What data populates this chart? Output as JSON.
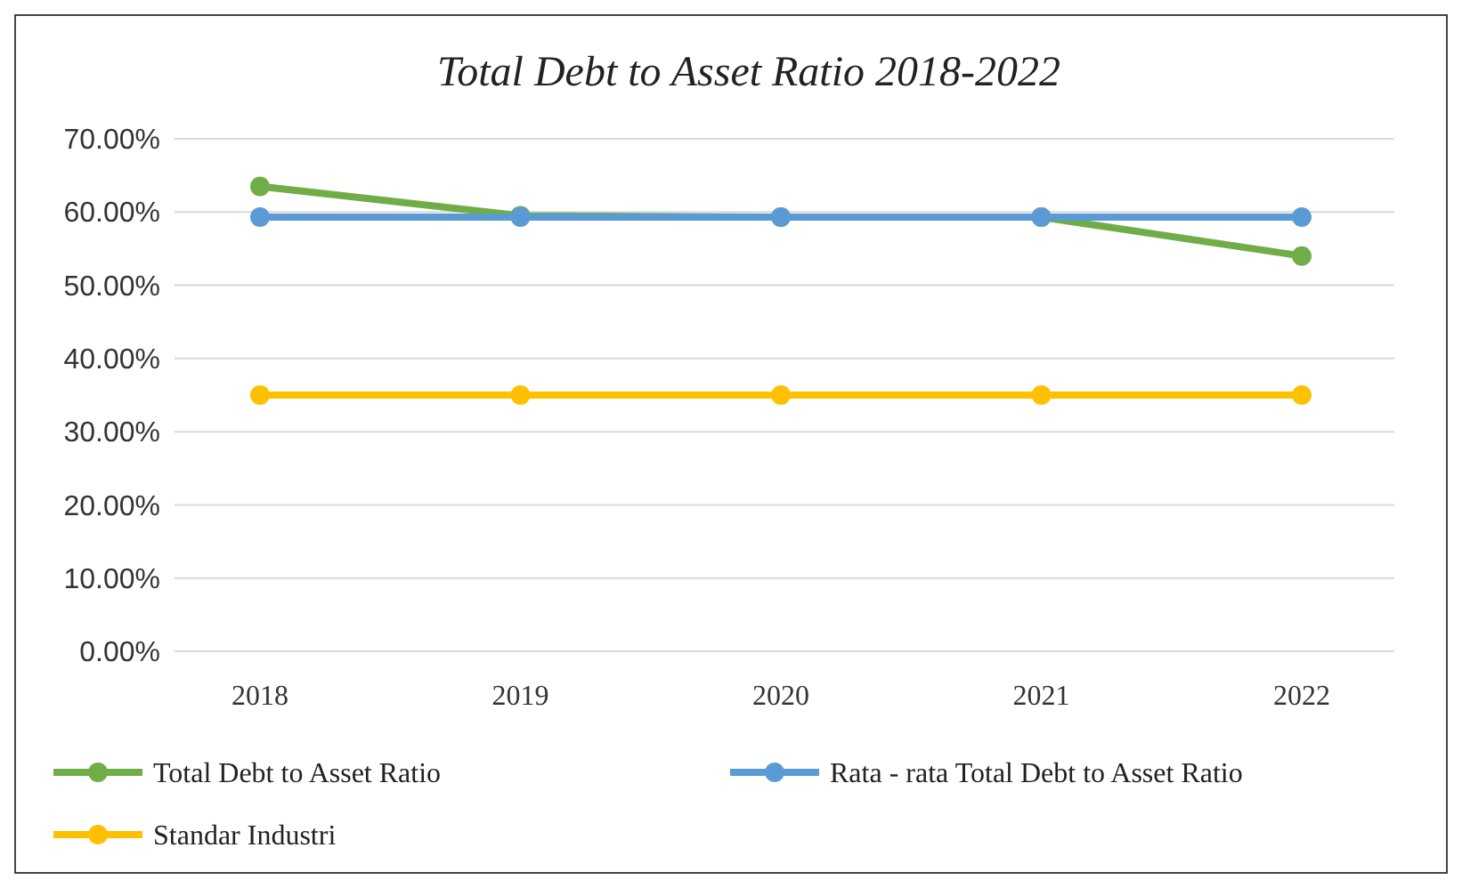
{
  "chart_data": {
    "type": "line",
    "title": "Total Debt to Asset Ratio 2018-2022",
    "categories": [
      "2018",
      "2019",
      "2020",
      "2021",
      "2022"
    ],
    "series": [
      {
        "name": "Total Debt to Asset Ratio",
        "color": "#70ad47",
        "values": [
          63.5,
          59.5,
          59.3,
          59.3,
          54.0
        ]
      },
      {
        "name": "Rata - rata Total Debt to Asset Ratio",
        "color": "#5b9bd5",
        "values": [
          59.3,
          59.3,
          59.3,
          59.3,
          59.3
        ]
      },
      {
        "name": "Standar Industri",
        "color": "#ffc000",
        "values": [
          35,
          35,
          35,
          35,
          35
        ]
      }
    ],
    "ylim": [
      0,
      70
    ],
    "yticks": [
      {
        "value": 0,
        "label": "0.00%"
      },
      {
        "value": 10,
        "label": "10.00%"
      },
      {
        "value": 20,
        "label": "20.00%"
      },
      {
        "value": 30,
        "label": "30.00%"
      },
      {
        "value": 40,
        "label": "40.00%"
      },
      {
        "value": 50,
        "label": "50.00%"
      },
      {
        "value": 60,
        "label": "60.00%"
      },
      {
        "value": 70,
        "label": "70.00%"
      }
    ],
    "grid": "y",
    "legend": "bottom",
    "marker": "circle",
    "line_style": "solid"
  }
}
